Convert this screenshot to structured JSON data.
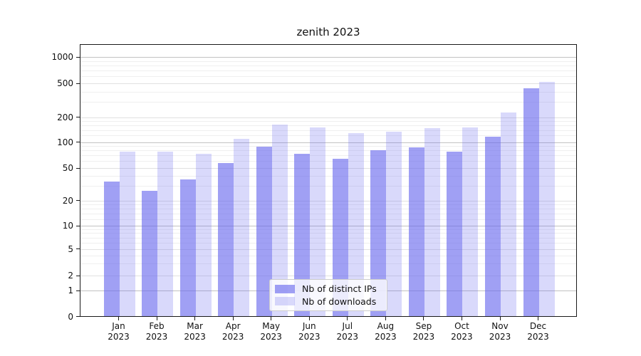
{
  "title": "zenith 2023",
  "chart_data": {
    "type": "bar",
    "categories": [
      "Jan",
      "Feb",
      "Mar",
      "Apr",
      "May",
      "Jun",
      "Jul",
      "Aug",
      "Sep",
      "Oct",
      "Nov",
      "Dec"
    ],
    "year": "2023",
    "series": [
      {
        "name": "Nb of distinct IPs",
        "values": [
          34,
          26,
          36,
          57,
          89,
          73,
          64,
          81,
          86,
          78,
          116,
          440
        ]
      },
      {
        "name": "Nb of downloads",
        "values": [
          77,
          77,
          73,
          110,
          162,
          151,
          129,
          134,
          146,
          151,
          225,
          516
        ]
      }
    ],
    "xlabel": "",
    "ylabel": "",
    "yscale": "symlog",
    "y_ticks": [
      0,
      1,
      2,
      5,
      10,
      20,
      50,
      100,
      200,
      500,
      1000
    ],
    "ylim": [
      0,
      1200
    ],
    "grid": true,
    "legend_position": "lower center",
    "colors": {
      "base": "#6666ee",
      "distinct_ips_alpha": 0.62,
      "downloads_alpha": 0.25,
      "distinct_ips_rendered": "#a4a4f4",
      "downloads_rendered": "#dcdcfa",
      "grid_major": "#c2c2c2",
      "grid_labeled": "#e1e1e1",
      "grid_minor": "#efefef"
    }
  }
}
